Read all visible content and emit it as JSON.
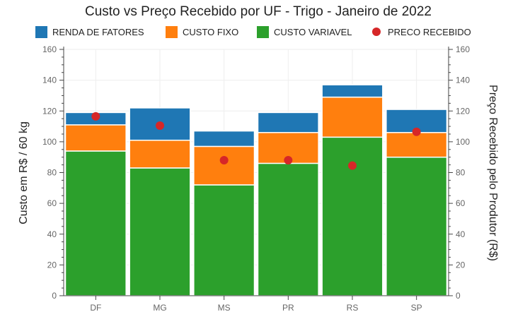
{
  "chart_data": {
    "type": "bar",
    "stacked": true,
    "title": "Custo vs Preço Recebido por UF - Trigo - Janeiro de 2022",
    "ylabel": "Custo em R$ / 60 kg",
    "y2label": "Preço Recebido pelo Produtor (R$)",
    "ylim": [
      0,
      160
    ],
    "y2lim": [
      0,
      160
    ],
    "yticks": [
      0,
      20,
      40,
      60,
      80,
      100,
      120,
      140,
      160
    ],
    "legend_position": "top",
    "grid": true,
    "categories": [
      "DF",
      "MG",
      "MS",
      "PR",
      "RS",
      "SP"
    ],
    "series": [
      {
        "name": "CUSTO VARIAVEL",
        "kind": "bar",
        "color": "#2ca02c",
        "values": [
          94,
          83,
          72,
          86,
          103,
          90
        ]
      },
      {
        "name": "CUSTO FIXO",
        "kind": "bar",
        "color": "#ff7f0e",
        "values": [
          17,
          18,
          25,
          20,
          26,
          16
        ]
      },
      {
        "name": "RENDA DE FATORES",
        "kind": "bar",
        "color": "#1f77b4",
        "values": [
          8,
          21,
          10,
          13,
          8,
          15
        ]
      },
      {
        "name": "PRECO RECEBIDO",
        "kind": "scatter",
        "color": "#d62728",
        "values": [
          116.5,
          110.5,
          88,
          88,
          84.5,
          106.5
        ]
      }
    ],
    "legend_order": [
      "RENDA DE FATORES",
      "CUSTO FIXO",
      "CUSTO VARIAVEL",
      "PRECO RECEBIDO"
    ]
  }
}
